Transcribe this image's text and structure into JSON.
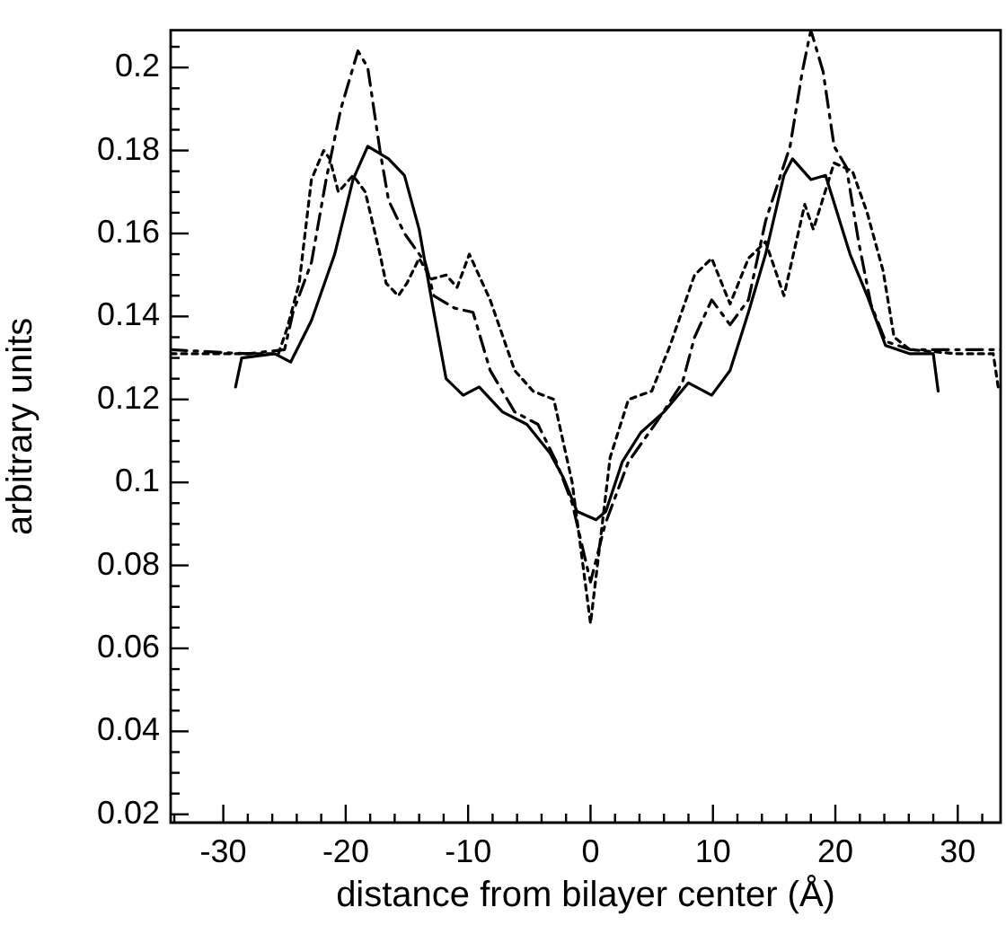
{
  "chart_data": {
    "type": "line",
    "xlabel": "distance from bilayer center (Å)",
    "ylabel": "arbitrary units",
    "xlim": [
      -34.3,
      33.5
    ],
    "ylim": [
      0.018,
      0.209
    ],
    "xticks": [
      {
        "value": -34,
        "label": null
      },
      -30,
      {
        "value": -28,
        "label": null
      },
      {
        "value": -26,
        "label": null
      },
      {
        "value": -24,
        "label": null
      },
      {
        "value": -22,
        "label": null
      },
      -20,
      {
        "value": -18,
        "label": null
      },
      {
        "value": -16,
        "label": null
      },
      {
        "value": -14,
        "label": null
      },
      {
        "value": -12,
        "label": null
      },
      -10,
      {
        "value": -8,
        "label": null
      },
      {
        "value": -6,
        "label": null
      },
      {
        "value": -4,
        "label": null
      },
      {
        "value": -2,
        "label": null
      },
      0,
      {
        "value": 2,
        "label": null
      },
      {
        "value": 4,
        "label": null
      },
      {
        "value": 6,
        "label": null
      },
      {
        "value": 8,
        "label": null
      },
      10,
      {
        "value": 12,
        "label": null
      },
      {
        "value": 14,
        "label": null
      },
      {
        "value": 16,
        "label": null
      },
      {
        "value": 18,
        "label": null
      },
      20,
      {
        "value": 22,
        "label": null
      },
      {
        "value": 24,
        "label": null
      },
      {
        "value": 26,
        "label": null
      },
      {
        "value": 28,
        "label": null
      },
      30,
      {
        "value": 32,
        "label": null
      }
    ],
    "yticks": [
      0.02,
      {
        "value": 0.025,
        "label": null
      },
      {
        "value": 0.03,
        "label": null
      },
      {
        "value": 0.035,
        "label": null
      },
      0.04,
      {
        "value": 0.045,
        "label": null
      },
      {
        "value": 0.05,
        "label": null
      },
      {
        "value": 0.055,
        "label": null
      },
      0.06,
      {
        "value": 0.065,
        "label": null
      },
      {
        "value": 0.07,
        "label": null
      },
      {
        "value": 0.075,
        "label": null
      },
      0.08,
      {
        "value": 0.085,
        "label": null
      },
      {
        "value": 0.09,
        "label": null
      },
      {
        "value": 0.095,
        "label": null
      },
      0.1,
      {
        "value": 0.105,
        "label": null
      },
      {
        "value": 0.11,
        "label": null
      },
      {
        "value": 0.115,
        "label": null
      },
      0.12,
      {
        "value": 0.125,
        "label": null
      },
      {
        "value": 0.13,
        "label": null
      },
      {
        "value": 0.135,
        "label": null
      },
      0.14,
      {
        "value": 0.145,
        "label": null
      },
      {
        "value": 0.15,
        "label": null
      },
      {
        "value": 0.155,
        "label": null
      },
      0.16,
      {
        "value": 0.165,
        "label": null
      },
      {
        "value": 0.17,
        "label": null
      },
      {
        "value": 0.175,
        "label": null
      },
      0.18,
      {
        "value": 0.185,
        "label": null
      },
      {
        "value": 0.19,
        "label": null
      },
      {
        "value": 0.195,
        "label": null
      },
      0.2,
      {
        "value": 0.205,
        "label": null
      }
    ],
    "grid": false,
    "legend": false,
    "marker": "none",
    "series": [
      {
        "color": "#000000",
        "line_style": "solid",
        "x": [
          -29,
          -28.5,
          -25.8,
          -24.5,
          -22.8,
          -20.9,
          -19.4,
          -18.2,
          -16.5,
          -15.2,
          -14,
          -12.8,
          -11.8,
          -10.4,
          -9.1,
          -7.2,
          -5.2,
          -3.3,
          -2.2,
          -1.1,
          0.45,
          1.25,
          2.6,
          4.1,
          6,
          8,
          9.9,
          11.4,
          12.9,
          14.3,
          15.8,
          16.5,
          18,
          19.2,
          21.2,
          22.6,
          24.1,
          26.1,
          28,
          28.4
        ],
        "values": [
          0.123,
          0.13,
          0.131,
          0.129,
          0.139,
          0.155,
          0.173,
          0.181,
          0.178,
          0.174,
          0.161,
          0.141,
          0.125,
          0.121,
          0.123,
          0.117,
          0.114,
          0.107,
          0.101,
          0.093,
          0.091,
          0.093,
          0.105,
          0.112,
          0.117,
          0.124,
          0.121,
          0.127,
          0.141,
          0.155,
          0.174,
          0.178,
          0.173,
          0.174,
          0.155,
          0.145,
          0.133,
          0.131,
          0.131,
          0.122
        ]
      },
      {
        "color": "#000000",
        "line_style": "dashed",
        "x": [
          -34.3,
          -28,
          -25,
          -24.3,
          -22.8,
          -21.6,
          -20.4,
          -19,
          -18.2,
          -17.2,
          -16.5,
          -15.2,
          -13.5,
          -12.8,
          -11.1,
          -9.6,
          -8.2,
          -6.2,
          -4.3,
          -2.8,
          -1.5,
          0,
          1.2,
          3.1,
          5.5,
          7.5,
          8.5,
          9.9,
          11.4,
          12.9,
          14.3,
          16.3,
          17.3,
          18,
          19,
          19.9,
          20.9,
          21.9,
          22.9,
          24.1,
          26.1,
          30,
          33.5
        ],
        "values": [
          0.132,
          0.131,
          0.132,
          0.141,
          0.153,
          0.173,
          0.19,
          0.204,
          0.2,
          0.18,
          0.168,
          0.16,
          0.153,
          0.145,
          0.142,
          0.141,
          0.127,
          0.117,
          0.114,
          0.105,
          0.095,
          0.076,
          0.09,
          0.105,
          0.115,
          0.124,
          0.135,
          0.144,
          0.138,
          0.144,
          0.163,
          0.181,
          0.199,
          0.209,
          0.199,
          0.181,
          0.176,
          0.158,
          0.143,
          0.134,
          0.132,
          0.132,
          0.132
        ]
      },
      {
        "color": "#000000",
        "line_style": "dotted",
        "x": [
          -34.3,
          -28,
          -25.5,
          -24.8,
          -23.8,
          -22.8,
          -21.8,
          -21.3,
          -20.6,
          -19.4,
          -18.4,
          -17.2,
          -16.7,
          -15.7,
          -15,
          -14,
          -13,
          -11.8,
          -10.9,
          -9.9,
          -8.2,
          -6.2,
          -4.7,
          -3,
          -1.5,
          0,
          1.6,
          3.1,
          5,
          6.5,
          8.5,
          9.9,
          11.4,
          12.9,
          14.3,
          15.8,
          17.5,
          18.2,
          19.9,
          21.4,
          22.6,
          23.9,
          24.8,
          26.1,
          30,
          32.9,
          33.3
        ],
        "values": [
          0.131,
          0.131,
          0.131,
          0.137,
          0.148,
          0.173,
          0.18,
          0.178,
          0.17,
          0.174,
          0.17,
          0.155,
          0.148,
          0.145,
          0.148,
          0.154,
          0.149,
          0.15,
          0.147,
          0.155,
          0.144,
          0.127,
          0.122,
          0.12,
          0.1,
          0.066,
          0.106,
          0.12,
          0.122,
          0.133,
          0.15,
          0.154,
          0.143,
          0.154,
          0.158,
          0.145,
          0.167,
          0.161,
          0.177,
          0.175,
          0.165,
          0.151,
          0.135,
          0.132,
          0.131,
          0.131,
          0.123
        ]
      }
    ]
  }
}
